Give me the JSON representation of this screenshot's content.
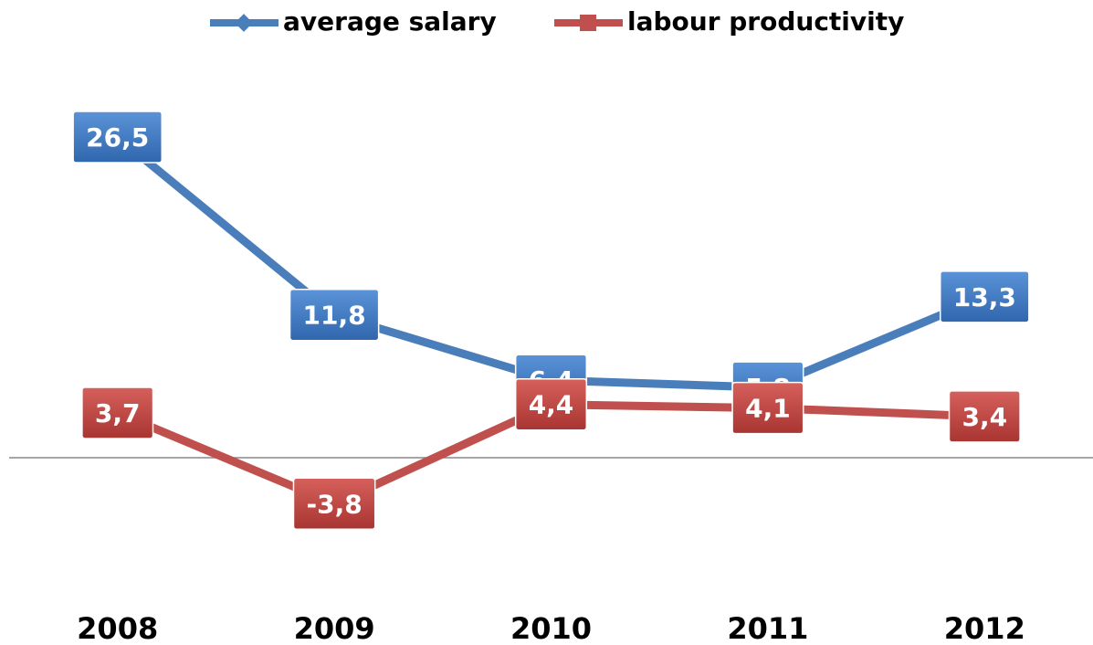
{
  "chart_data": {
    "type": "line",
    "categories": [
      "2008",
      "2009",
      "2010",
      "2011",
      "2012"
    ],
    "series": [
      {
        "name": "average salary",
        "color": "#4a7ebb",
        "values": [
          26.5,
          11.8,
          6.4,
          5.8,
          13.3
        ],
        "value_labels": [
          "26,5",
          "11,8",
          "6,4",
          "5,8",
          "13,3"
        ]
      },
      {
        "name": "labour productivity",
        "color": "#c0504d",
        "values": [
          3.7,
          -3.8,
          4.4,
          4.1,
          3.4
        ],
        "value_labels": [
          "3,7",
          "-3,8",
          "4,4",
          "4,1",
          "3,4"
        ]
      }
    ],
    "ylim": [
      -10.5,
      33.3
    ],
    "legend": "top"
  }
}
